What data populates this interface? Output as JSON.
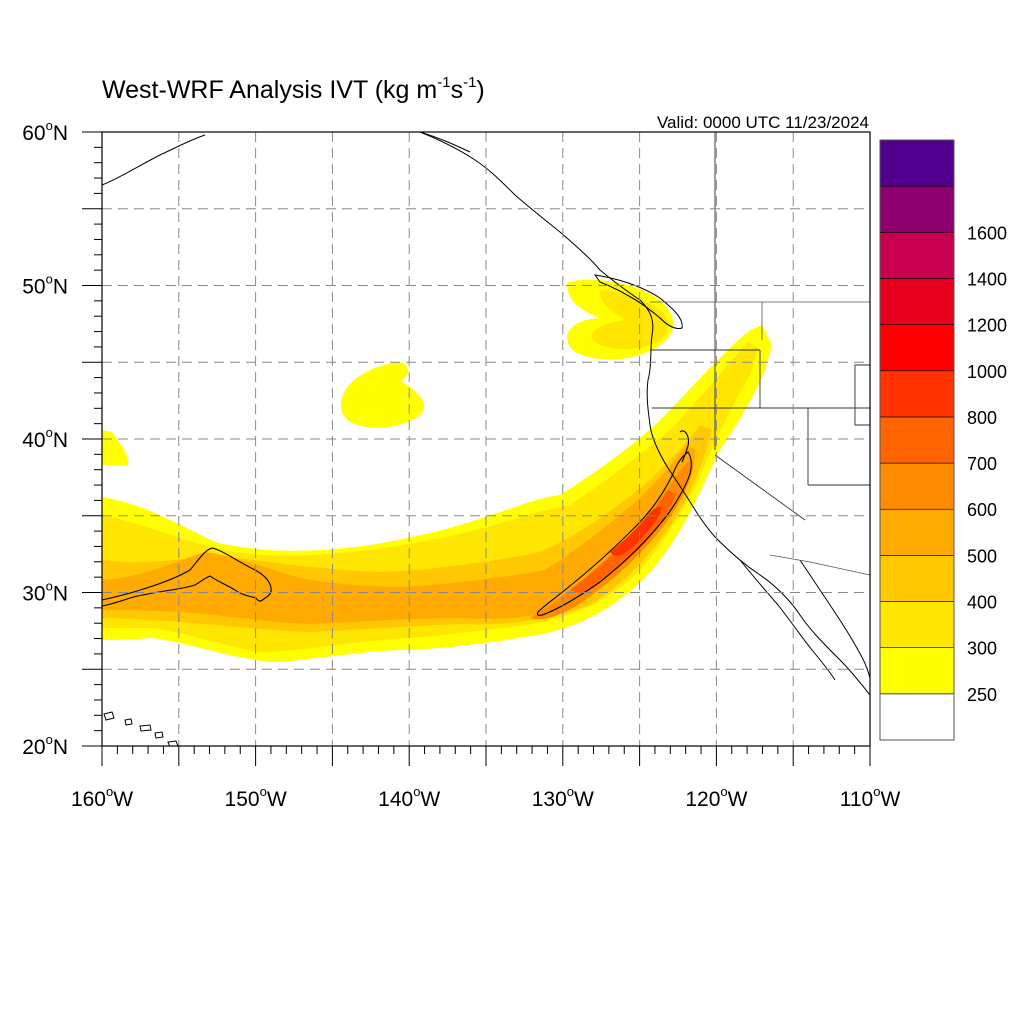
{
  "title": {
    "main": "West-WRF Analysis IVT (kg m",
    "exp1": "-1",
    "mid": "s",
    "exp2": "-1",
    "end": ")"
  },
  "valid_text": "Valid: 0000 UTC 11/23/2024",
  "map": {
    "lon_range": [
      -160,
      -110
    ],
    "lat_range": [
      20,
      60
    ],
    "grid_spacing_deg": 5,
    "grid_style": "dashed gray",
    "lon_labels": [
      {
        "lon": -160,
        "num": "160",
        "hemi": "W"
      },
      {
        "lon": -150,
        "num": "150",
        "hemi": "W"
      },
      {
        "lon": -140,
        "num": "140",
        "hemi": "W"
      },
      {
        "lon": -130,
        "num": "130",
        "hemi": "W"
      },
      {
        "lon": -120,
        "num": "120",
        "hemi": "W"
      },
      {
        "lon": -110,
        "num": "110",
        "hemi": "W"
      }
    ],
    "lat_labels": [
      {
        "lat": 60,
        "num": "60",
        "hemi": "N"
      },
      {
        "lat": 50,
        "num": "50",
        "hemi": "N"
      },
      {
        "lat": 40,
        "num": "40",
        "hemi": "N"
      },
      {
        "lat": 30,
        "num": "30",
        "hemi": "N"
      },
      {
        "lat": 20,
        "num": "20",
        "hemi": "N"
      }
    ],
    "degree_symbol": "o"
  },
  "colorbar": {
    "position": "right",
    "colors": [
      "#ffffff",
      "#ffff00",
      "#ffe600",
      "#ffc800",
      "#ffaa00",
      "#ff8c00",
      "#ff6400",
      "#ff3200",
      "#ff0000",
      "#e6001e",
      "#c80050",
      "#8c006e",
      "#50008c"
    ],
    "labels": [
      "250",
      "300",
      "400",
      "500",
      "600",
      "700",
      "800",
      "1000",
      "1200",
      "1400",
      "1600"
    ]
  },
  "colors": {
    "contour_line": "#000000",
    "coastline": "#000000",
    "grid": "#888888"
  }
}
